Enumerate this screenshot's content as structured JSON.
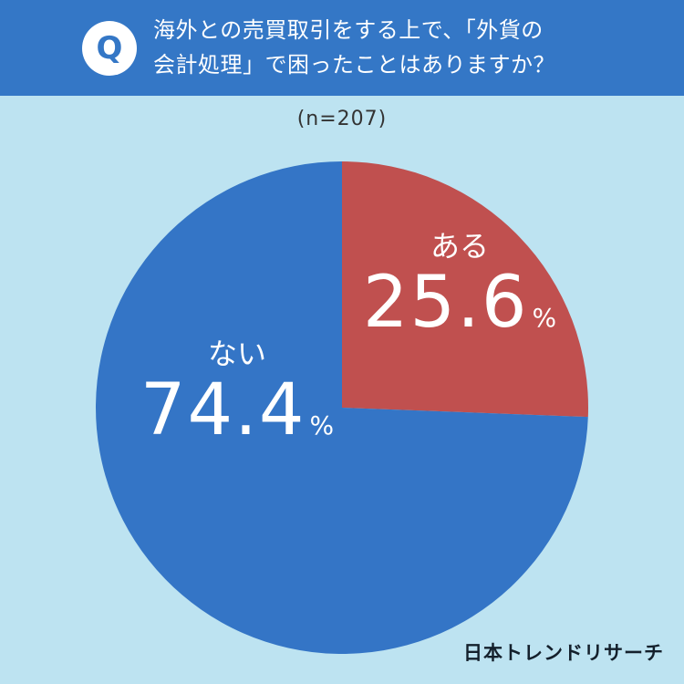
{
  "header": {
    "badge": "Q",
    "question_line1": "海外との売買取引をする上で、「外貨の",
    "question_line2": "会計処理」で困ったことはありますか？"
  },
  "sample_size": "(n=207)",
  "chart_data": {
    "type": "pie",
    "title": "海外との売買取引をする上で、「外貨の会計処理」で困ったことはありますか？",
    "n": 207,
    "unit": "%",
    "slices": [
      {
        "label": "ある",
        "value": 25.6,
        "value_text": "25.6",
        "color": "#c0504f"
      },
      {
        "label": "ない",
        "value": 74.4,
        "value_text": "74.4",
        "color": "#3475c6"
      }
    ]
  },
  "brand": "日本トレンドリサーチ"
}
